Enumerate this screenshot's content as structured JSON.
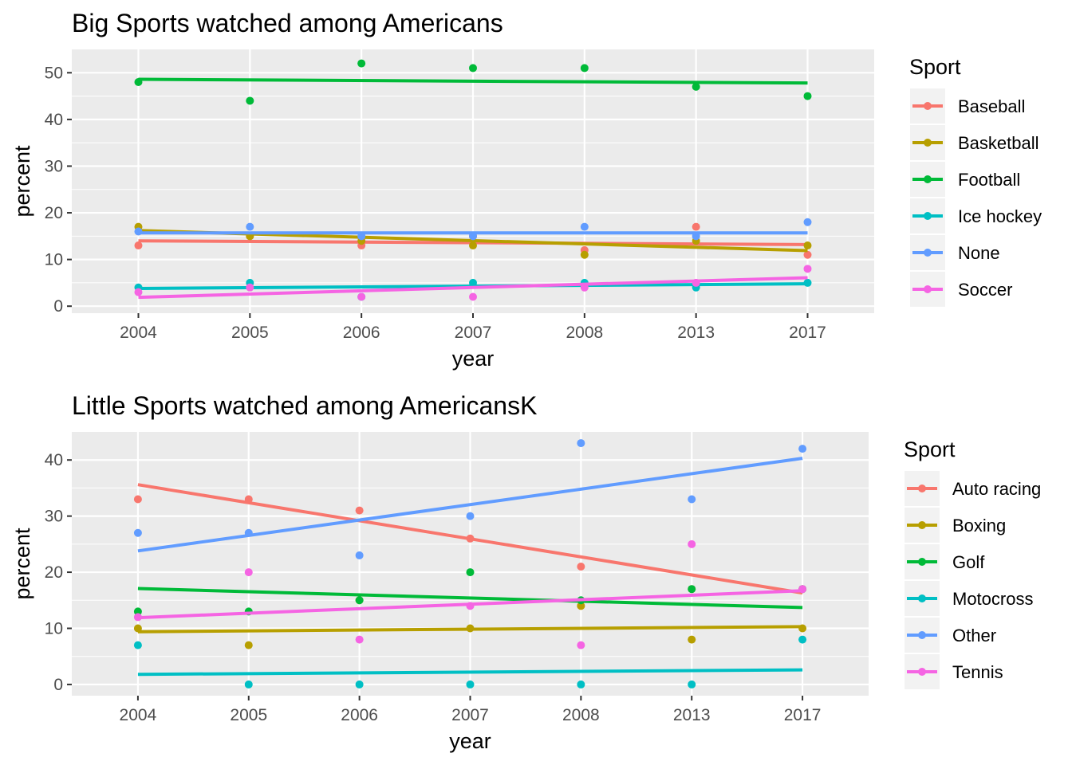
{
  "chart_data": [
    {
      "type": "scatter",
      "title": "Big Sports watched among Americans",
      "xlabel": "year",
      "ylabel": "percent",
      "categories": [
        "2004",
        "2005",
        "2006",
        "2007",
        "2008",
        "2013",
        "2017"
      ],
      "yticks": [
        0,
        10,
        20,
        30,
        40,
        50
      ],
      "ylim": [
        -1.5,
        55
      ],
      "grid": true,
      "trend_lines": true,
      "legend": {
        "title": "Sport",
        "placement": "right"
      },
      "series": [
        {
          "name": "Baseball",
          "color": "#F8766D",
          "values": [
            13,
            15,
            13,
            15,
            12,
            17,
            11
          ],
          "fit": [
            14.0,
            13.2
          ]
        },
        {
          "name": "Basketball",
          "color": "#B79F00",
          "values": [
            17,
            15,
            14,
            13,
            11,
            14,
            13
          ],
          "fit": [
            16.2,
            11.9
          ]
        },
        {
          "name": "Football",
          "color": "#00BA38",
          "values": [
            48,
            44,
            52,
            51,
            51,
            47,
            45
          ],
          "fit": [
            48.6,
            47.8
          ]
        },
        {
          "name": "Ice hockey",
          "color": "#00BFC4",
          "values": [
            4,
            5,
            2,
            5,
            5,
            4,
            5
          ],
          "fit": [
            3.8,
            4.8
          ]
        },
        {
          "name": "None",
          "color": "#619CFF",
          "values": [
            16,
            17,
            15,
            15,
            17,
            15,
            18
          ],
          "fit": [
            15.7,
            15.7
          ]
        },
        {
          "name": "Soccer",
          "color": "#F564E3",
          "values": [
            3,
            4,
            2,
            2,
            4,
            5,
            8
          ],
          "fit": [
            1.9,
            6.1
          ]
        }
      ]
    },
    {
      "type": "scatter",
      "title": "Little Sports watched among AmericansK",
      "xlabel": "year",
      "ylabel": "percent",
      "categories": [
        "2004",
        "2005",
        "2006",
        "2007",
        "2008",
        "2013",
        "2017"
      ],
      "yticks": [
        0,
        10,
        20,
        30,
        40
      ],
      "ylim": [
        -2,
        45
      ],
      "grid": true,
      "trend_lines": true,
      "legend": {
        "title": "Sport",
        "placement": "right"
      },
      "series": [
        {
          "name": "Auto racing",
          "color": "#F8766D",
          "values": [
            33,
            33,
            31,
            26,
            21,
            17,
            17
          ],
          "fit": [
            35.6,
            16.3
          ]
        },
        {
          "name": "Boxing",
          "color": "#B79F00",
          "values": [
            10,
            7,
            15,
            10,
            14,
            8,
            10
          ],
          "fit": [
            9.4,
            10.3
          ]
        },
        {
          "name": "Golf",
          "color": "#00BA38",
          "values": [
            13,
            13,
            15,
            20,
            15,
            17,
            17
          ],
          "fit": [
            17.1,
            13.7
          ]
        },
        {
          "name": "Motocross",
          "color": "#00BFC4",
          "values": [
            7,
            0,
            0,
            0,
            0,
            0,
            8
          ],
          "fit": [
            1.8,
            2.6
          ]
        },
        {
          "name": "Other",
          "color": "#619CFF",
          "values": [
            27,
            27,
            23,
            30,
            43,
            33,
            42
          ],
          "fit": [
            23.8,
            40.3
          ]
        },
        {
          "name": "Tennis",
          "color": "#F564E3",
          "values": [
            12,
            20,
            8,
            14,
            7,
            25,
            17
          ],
          "fit": [
            11.9,
            16.7
          ]
        }
      ]
    }
  ]
}
